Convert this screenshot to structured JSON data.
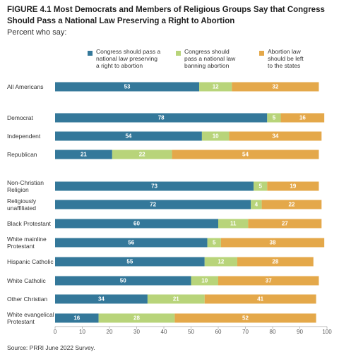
{
  "chart_data": {
    "type": "stacked-bar-horizontal",
    "title": "FIGURE 4.1  Most Democrats and Members of Religious Groups Say that Congress Should Pass a National Law Preserving a Right to Abortion",
    "subtitle": "Percent who say:",
    "source": "Source: PRRI June 2022 Survey.",
    "categories": [
      "All Americans",
      "Democrat",
      "Independent",
      "Republican",
      "Non-Christian\nReligion",
      "Religiously\nunaffiliated",
      "Black Protestant",
      "White mainline\nProtestant",
      "Hispanic Catholic",
      "White Catholic",
      "Other Christian",
      "White evangelical\nProtestant"
    ],
    "series": [
      {
        "name": "Congress should pass a\nnational law preserving\na right to abortion",
        "color": "#34789a",
        "values": [
          53,
          78,
          54,
          21,
          73,
          72,
          60,
          56,
          55,
          50,
          34,
          16
        ]
      },
      {
        "name": "Congress should\npass a national law\nbanning abortion",
        "color": "#b8d47a",
        "values": [
          12,
          5,
          10,
          22,
          5,
          4,
          11,
          5,
          12,
          10,
          21,
          28
        ]
      },
      {
        "name": "Abortion law\nshould be left\nto the states",
        "color": "#e4a84a",
        "values": [
          32,
          16,
          34,
          54,
          19,
          22,
          27,
          38,
          28,
          37,
          41,
          52
        ]
      }
    ],
    "xlim": [
      0,
      100
    ],
    "xticks": [
      0,
      10,
      20,
      30,
      40,
      50,
      60,
      70,
      80,
      90,
      100
    ],
    "grid": false
  }
}
